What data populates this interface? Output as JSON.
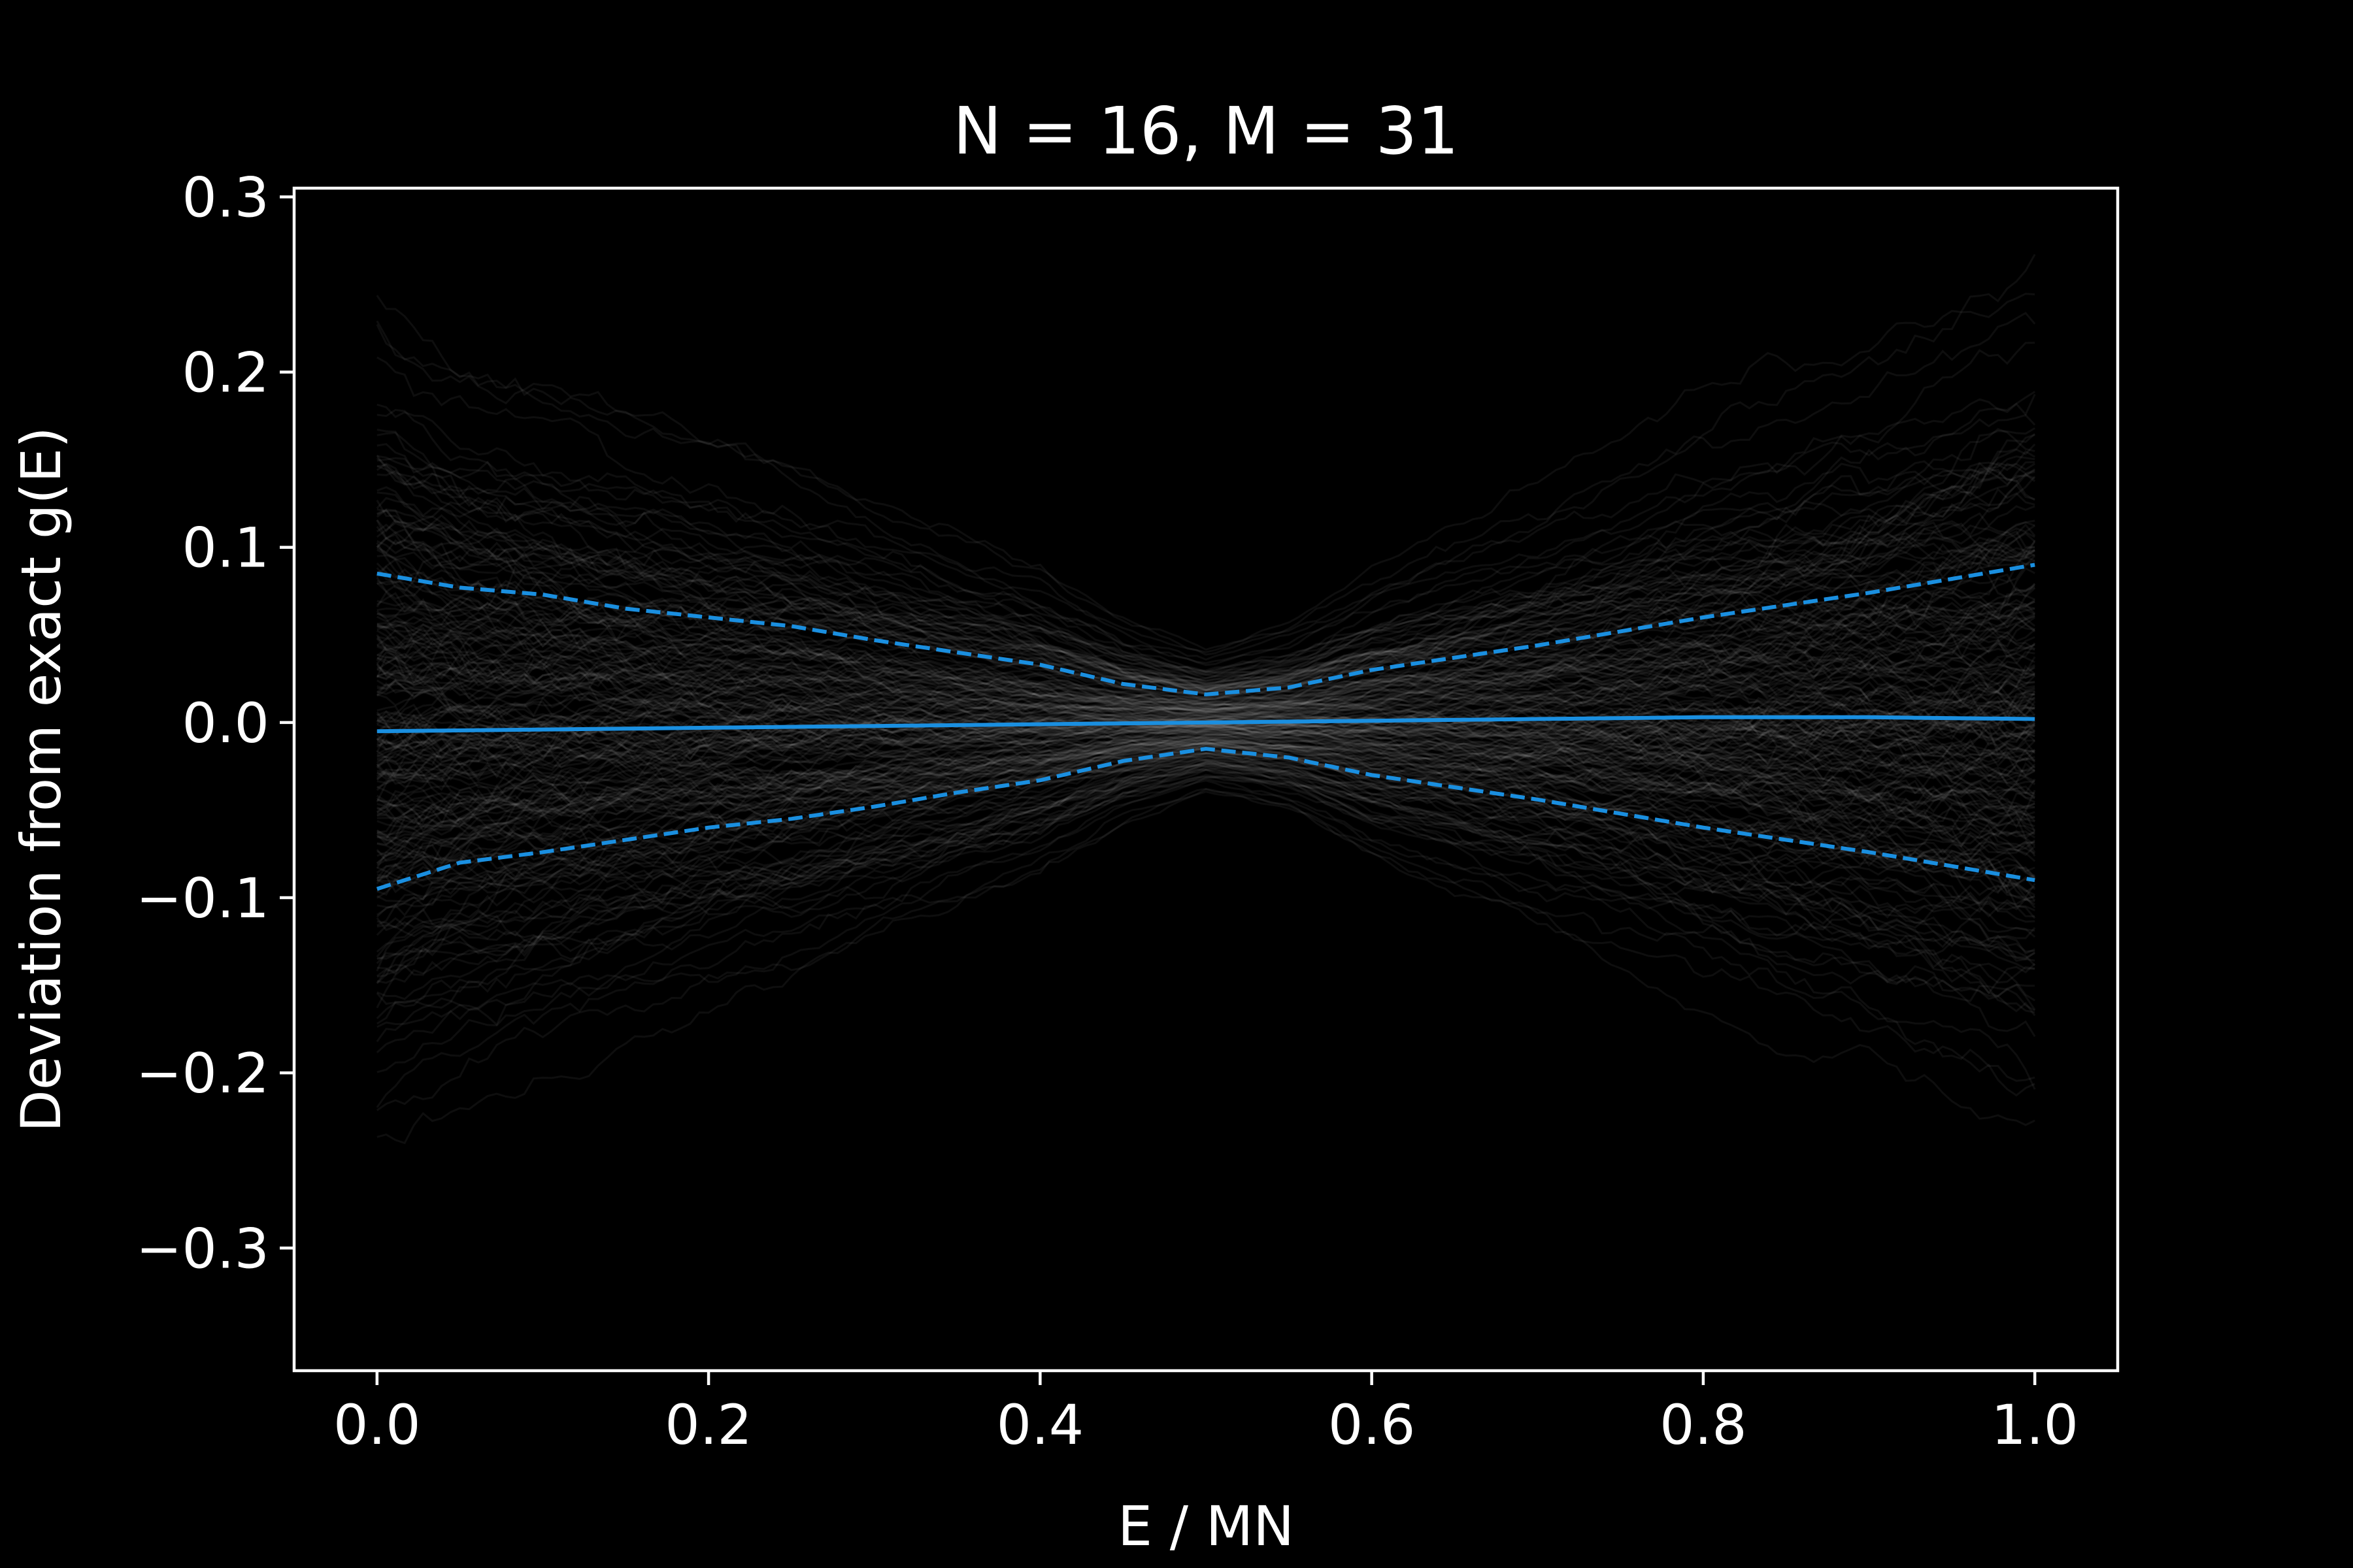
{
  "chart_data": {
    "type": "line",
    "title": "N = 16, M = 31",
    "xlabel": "E / MN",
    "ylabel": "Deviation from exact g(E)",
    "xlim": [
      -0.05,
      1.05
    ],
    "ylim": [
      -0.37,
      0.305
    ],
    "xticks": [
      0.0,
      0.2,
      0.4,
      0.6,
      0.8,
      1.0
    ],
    "xtick_labels": [
      "0.0",
      "0.2",
      "0.4",
      "0.6",
      "0.8",
      "1.0"
    ],
    "yticks": [
      -0.3,
      -0.2,
      -0.1,
      0.0,
      0.1,
      0.2,
      0.3
    ],
    "ytick_labels": [
      "−0.3",
      "−0.2",
      "−0.1",
      "0.0",
      "0.1",
      "0.2",
      "0.3"
    ],
    "grid": false,
    "background": "#000000",
    "trace_color": "#ffffff",
    "series_color": "#1a8fe0",
    "mean": {
      "x": [
        0.0,
        0.1,
        0.2,
        0.3,
        0.4,
        0.5,
        0.6,
        0.7,
        0.8,
        0.9,
        1.0
      ],
      "y": [
        -0.005,
        -0.004,
        -0.003,
        -0.002,
        -0.001,
        0.0,
        0.001,
        0.002,
        0.003,
        0.003,
        0.002
      ]
    },
    "band_upper": {
      "x": [
        0.0,
        0.05,
        0.1,
        0.15,
        0.2,
        0.25,
        0.3,
        0.35,
        0.4,
        0.45,
        0.5,
        0.55,
        0.6,
        0.65,
        0.7,
        0.75,
        0.8,
        0.85,
        0.9,
        0.95,
        1.0
      ],
      "y": [
        0.085,
        0.077,
        0.073,
        0.065,
        0.06,
        0.055,
        0.047,
        0.04,
        0.033,
        0.022,
        0.016,
        0.02,
        0.03,
        0.037,
        0.044,
        0.052,
        0.06,
        0.067,
        0.074,
        0.082,
        0.09
      ]
    },
    "band_lower": {
      "x": [
        0.0,
        0.05,
        0.1,
        0.15,
        0.2,
        0.25,
        0.3,
        0.35,
        0.4,
        0.45,
        0.5,
        0.55,
        0.6,
        0.65,
        0.7,
        0.75,
        0.8,
        0.85,
        0.9,
        0.95,
        1.0
      ],
      "y": [
        -0.095,
        -0.08,
        -0.074,
        -0.067,
        -0.06,
        -0.055,
        -0.048,
        -0.04,
        -0.033,
        -0.022,
        -0.015,
        -0.02,
        -0.03,
        -0.037,
        -0.044,
        -0.052,
        -0.06,
        -0.067,
        -0.074,
        -0.082,
        -0.09
      ]
    }
  }
}
